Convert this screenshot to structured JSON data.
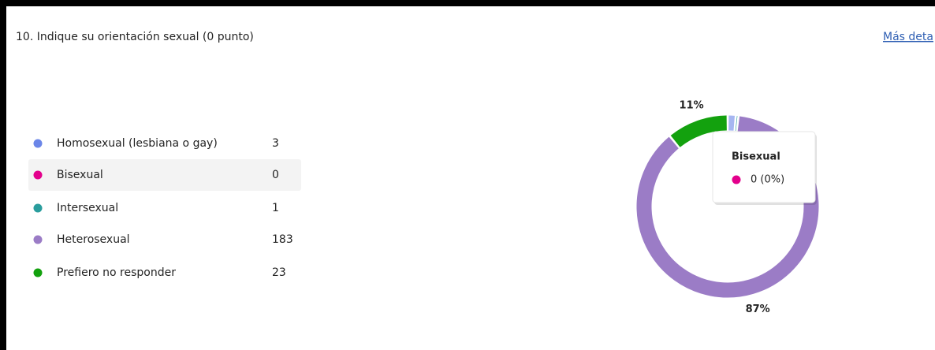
{
  "question": "10. Indique su orientación sexual (0 punto)",
  "link": "Más deta",
  "chart_data": {
    "type": "donut",
    "categories": [
      "Homosexual (lesbiana o gay)",
      "Bisexual",
      "Intersexual",
      "Heterosexual",
      "Prefiero no responder"
    ],
    "values": [
      3,
      0,
      1,
      183,
      23
    ],
    "value_labels": [
      null,
      null,
      null,
      "87%",
      "11%"
    ],
    "colors": [
      "#6b86e8",
      "#e3008c",
      "#2a9d9d",
      "#9b7cc6",
      "#13a10e"
    ],
    "tooltip": {
      "title": "Bisexual",
      "label": "0 (0%)"
    }
  }
}
